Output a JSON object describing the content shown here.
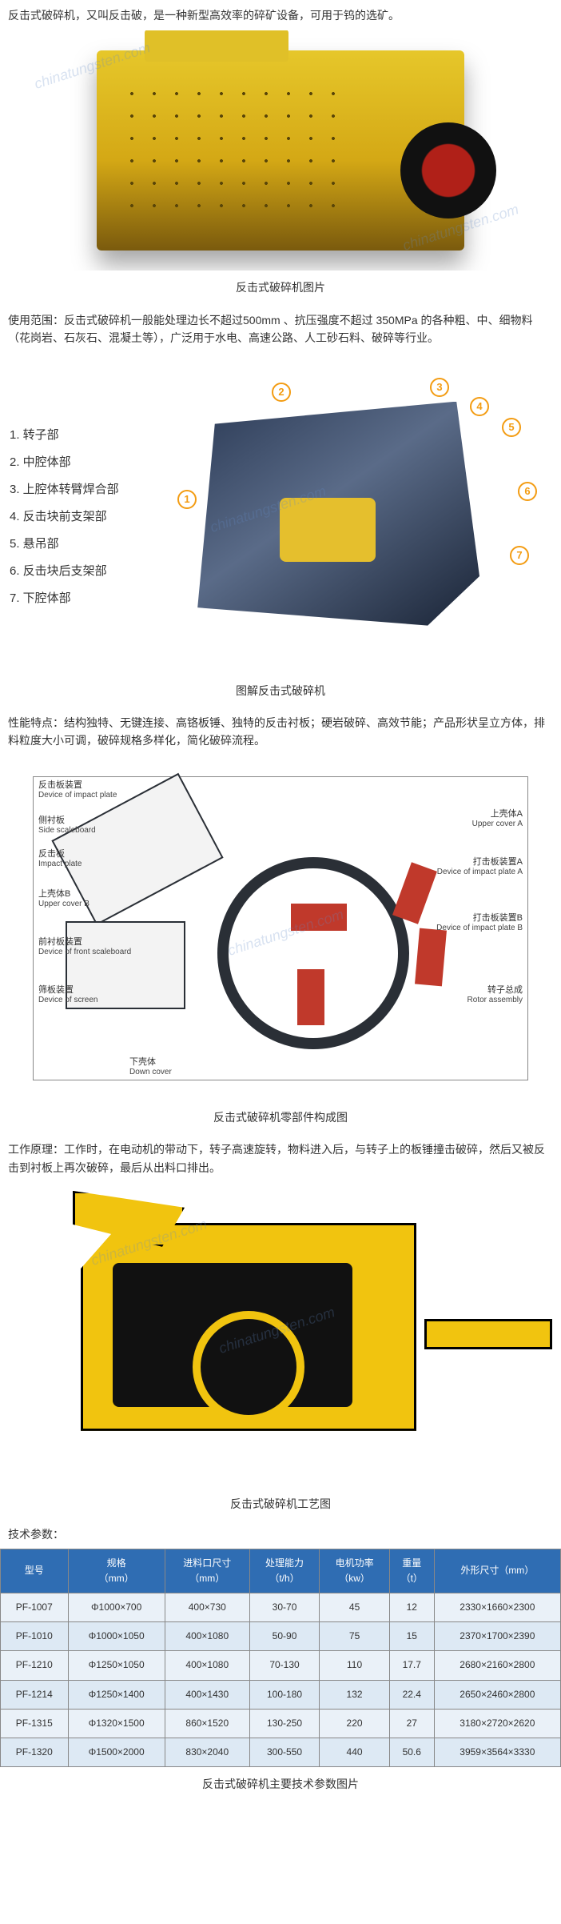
{
  "intro": "反击式破碎机，又叫反击破，是一种新型高效率的碎矿设备，可用于钨的选矿。",
  "caption1": "反击式破碎机图片",
  "scope": "使用范围：反击式破碎机一般能处理边长不超过500mm 、抗压强度不超过 350MPa 的各种粗、中、细物料（花岗岩、石灰石、混凝土等），广泛用于水电、高速公路、人工砂石料、破碎等行业。",
  "parts_list": [
    "1. 转子部",
    "2. 中腔体部",
    "3. 上腔体转臂焊合部",
    "4. 反击块前支架部",
    "5. 悬吊部",
    "6. 反击块后支架部",
    "7. 下腔体部"
  ],
  "callouts": {
    "c1": "1",
    "c2": "2",
    "c3": "3",
    "c4": "4",
    "c5": "5",
    "c6": "6",
    "c7": "7"
  },
  "caption2": "图解反击式破碎机",
  "features": "性能特点：结构独特、无键连接、高铬板锤、独特的反击衬板；硬岩破碎、高效节能；产品形状呈立方体，排料粒度大小可调，破碎规格多样化，简化破碎流程。",
  "schematic_labels": {
    "impact_plate": {
      "zh": "反击板装置",
      "en": "Device of impact plate"
    },
    "side_scale": {
      "zh": "侧衬板",
      "en": "Side scaleboard"
    },
    "impact_plate2": {
      "zh": "反击板",
      "en": "Impact plate"
    },
    "upper_b": {
      "zh": "上壳体B",
      "en": "Upper cover B"
    },
    "front_scale": {
      "zh": "前衬板装置",
      "en": "Device of front scaleboard"
    },
    "screen": {
      "zh": "筛板装置",
      "en": "Device of screen"
    },
    "down_cover": {
      "zh": "下壳体",
      "en": "Down cover"
    },
    "upper_a": {
      "zh": "上壳体A",
      "en": "Upper cover A"
    },
    "impact_a": {
      "zh": "打击板装置A",
      "en": "Device of impact plate A"
    },
    "impact_b": {
      "zh": "打击板装置B",
      "en": "Device of impact plate B"
    },
    "rotor": {
      "zh": "转子总成",
      "en": "Rotor assembly"
    }
  },
  "caption3": "反击式破碎机零部件构成图",
  "principle": "工作原理：工作时，在电动机的带动下，转子高速旋转，物料进入后，与转子上的板锤撞击破碎，然后又被反击到衬板上再次破碎，最后从出料口排出。",
  "caption4": "反击式破碎机工艺图",
  "params_label": "技术参数：",
  "table": {
    "header_bg": "#2f6db3",
    "row_odd_bg": "#eaf1f8",
    "row_even_bg": "#dde9f4",
    "columns": [
      "型号",
      "规格\n（mm）",
      "进料口尺寸\n（mm）",
      "处理能力\n（t/h）",
      "电机功率\n（kw）",
      "重量\n（t）",
      "外形尺寸（mm）"
    ],
    "rows": [
      [
        "PF-1007",
        "Φ1000×700",
        "400×730",
        "30-70",
        "45",
        "12",
        "2330×1660×2300"
      ],
      [
        "PF-1010",
        "Φ1000×1050",
        "400×1080",
        "50-90",
        "75",
        "15",
        "2370×1700×2390"
      ],
      [
        "PF-1210",
        "Φ1250×1050",
        "400×1080",
        "70-130",
        "110",
        "17.7",
        "2680×2160×2800"
      ],
      [
        "PF-1214",
        "Φ1250×1400",
        "400×1430",
        "100-180",
        "132",
        "22.4",
        "2650×2460×2800"
      ],
      [
        "PF-1315",
        "Φ1320×1500",
        "860×1520",
        "130-250",
        "220",
        "27",
        "3180×2720×2620"
      ],
      [
        "PF-1320",
        "Φ1500×2000",
        "830×2040",
        "300-550",
        "440",
        "50.6",
        "3959×3564×3330"
      ]
    ]
  },
  "caption5": "反击式破碎机主要技术参数图片",
  "watermark": "chinatungsten.com",
  "colors": {
    "machine_yellow": "#e6c72a",
    "wheel_red": "#b02018",
    "header_blue": "#2f6db3",
    "process_yellow": "#f1c40f",
    "callout_orange": "#f39c12",
    "hammer_red": "#c0392b"
  }
}
